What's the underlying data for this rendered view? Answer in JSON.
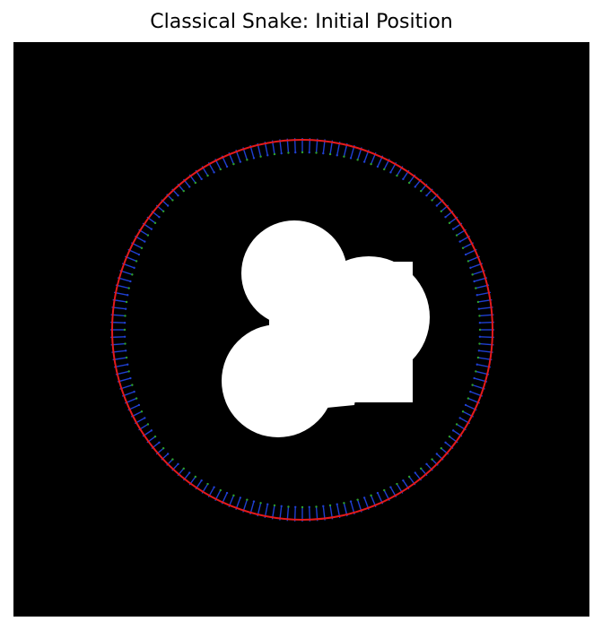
{
  "figure": {
    "title": "Classical Snake: Initial Position"
  },
  "colors": {
    "background": "#000000",
    "object": "#ffffff",
    "snake": "#e41a1c",
    "arrow_primary": "#1f3fd1",
    "arrow_secondary": "#2ca02c"
  },
  "icons": {
    "snake_contour": "red-circle",
    "force_arrows": "blue-green-arrows"
  }
}
